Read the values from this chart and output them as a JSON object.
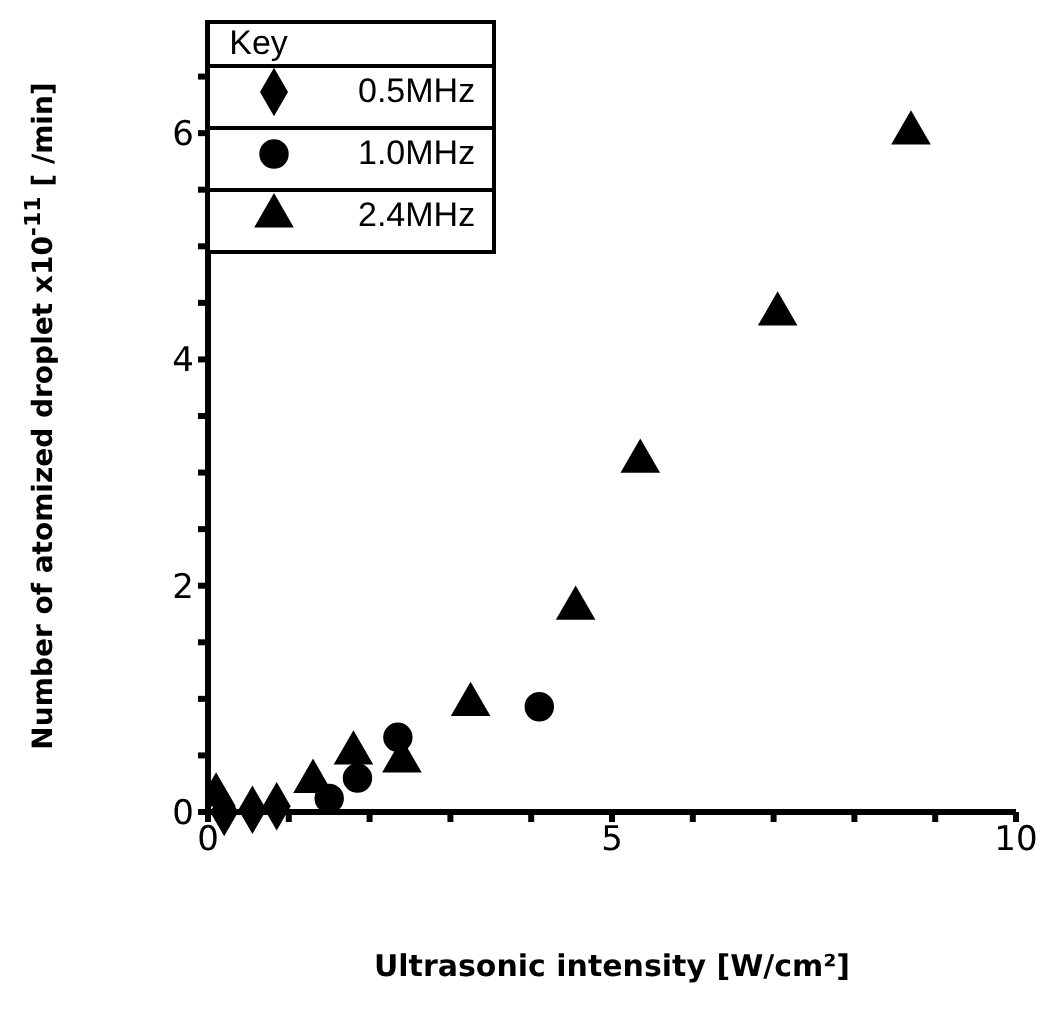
{
  "chart_data": {
    "type": "scatter",
    "xlabel": "Ultrasonic intensity [W/cm²]",
    "ylabel": "Number  of atomized droplet x10$^{-11}$ [ /min]",
    "legend_title": "Key",
    "legend": "top left",
    "xlim": [
      0,
      10
    ],
    "xticks": [
      0,
      {
        "value": 1,
        "label": null
      },
      {
        "value": 2,
        "label": null
      },
      {
        "value": 3,
        "label": null
      },
      {
        "value": 4,
        "label": null
      },
      5,
      {
        "value": 6,
        "label": null
      },
      {
        "value": 7,
        "label": null
      },
      {
        "value": 8,
        "label": null
      },
      {
        "value": 9,
        "label": null
      },
      10
    ],
    "ylim": [
      0,
      7
    ],
    "yticks": [
      0,
      {
        "value": 0.5,
        "label": null
      },
      {
        "value": 1,
        "label": null
      },
      {
        "value": 1.5,
        "label": null
      },
      2,
      {
        "value": 2.5,
        "label": null
      },
      {
        "value": 3,
        "label": null
      },
      {
        "value": 3.5,
        "label": null
      },
      4,
      {
        "value": 4.5,
        "label": null
      },
      {
        "value": 5,
        "label": null
      },
      {
        "value": 5.5,
        "label": null
      },
      6,
      {
        "value": 6.5,
        "label": null
      }
    ],
    "series": [
      {
        "name": "0.5MHz",
        "color": "#000000",
        "marker": "diamond",
        "x": [
          0.2,
          0.55,
          0.85
        ],
        "values": [
          0,
          0.02,
          0.05
        ]
      },
      {
        "name": "1.0MHz",
        "color": "#000000",
        "marker": "circle",
        "x": [
          1.5,
          1.85,
          2.35,
          4.1
        ],
        "values": [
          0.12,
          0.3,
          0.66,
          0.93
        ]
      },
      {
        "name": "2.4MHz",
        "color": "#000000",
        "marker": "triangle",
        "x": [
          0.1,
          1.3,
          1.8,
          2.4,
          3.25,
          4.55,
          5.35,
          7.05,
          8.7
        ],
        "values": [
          0.15,
          0.27,
          0.52,
          0.45,
          0.95,
          1.8,
          3.1,
          4.4,
          6.0
        ]
      }
    ]
  }
}
